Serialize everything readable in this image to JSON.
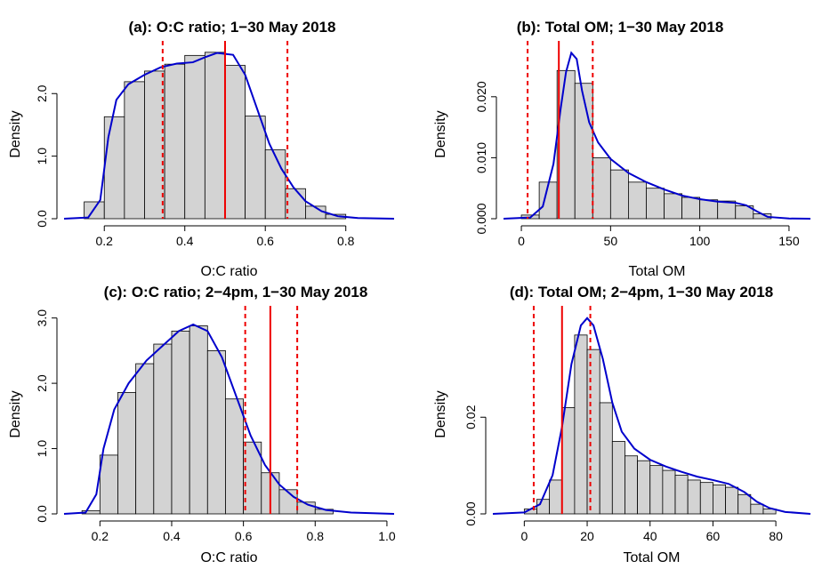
{
  "colors": {
    "bar_fill": "#d3d3d3",
    "density_line": "#0000cc",
    "reference_line": "#ee0000"
  },
  "chart_data": [
    {
      "type": "histogram",
      "title": "(a): O:C ratio; 1−30 May 2018",
      "xlabel": "O:C ratio",
      "ylabel": "Density",
      "xlim": [
        0.1,
        0.92
      ],
      "ylim": [
        0,
        2.7
      ],
      "xticks": [
        "0.2",
        "0.4",
        "0.6",
        "0.8"
      ],
      "xtick_values": [
        0.2,
        0.4,
        0.6,
        0.8
      ],
      "yticks": [
        "0.0",
        "1.0",
        "2.0"
      ],
      "ytick_values": [
        0,
        1.0,
        2.0
      ],
      "bin_width": 0.05,
      "bins": [
        {
          "x0": 0.15,
          "y": 0.27
        },
        {
          "x0": 0.2,
          "y": 1.63
        },
        {
          "x0": 0.25,
          "y": 2.19
        },
        {
          "x0": 0.3,
          "y": 2.36
        },
        {
          "x0": 0.35,
          "y": 2.47
        },
        {
          "x0": 0.4,
          "y": 2.61
        },
        {
          "x0": 0.45,
          "y": 2.66
        },
        {
          "x0": 0.5,
          "y": 2.45
        },
        {
          "x0": 0.55,
          "y": 1.64
        },
        {
          "x0": 0.6,
          "y": 1.1
        },
        {
          "x0": 0.65,
          "y": 0.48
        },
        {
          "x0": 0.7,
          "y": 0.2
        },
        {
          "x0": 0.75,
          "y": 0.07
        }
      ],
      "density_curve": [
        [
          0.1,
          0
        ],
        [
          0.16,
          0.02
        ],
        [
          0.19,
          0.3
        ],
        [
          0.21,
          1.3
        ],
        [
          0.23,
          1.9
        ],
        [
          0.26,
          2.15
        ],
        [
          0.3,
          2.3
        ],
        [
          0.34,
          2.42
        ],
        [
          0.38,
          2.48
        ],
        [
          0.42,
          2.5
        ],
        [
          0.45,
          2.58
        ],
        [
          0.48,
          2.65
        ],
        [
          0.52,
          2.62
        ],
        [
          0.55,
          2.3
        ],
        [
          0.58,
          1.75
        ],
        [
          0.61,
          1.2
        ],
        [
          0.64,
          0.8
        ],
        [
          0.67,
          0.5
        ],
        [
          0.7,
          0.28
        ],
        [
          0.74,
          0.12
        ],
        [
          0.78,
          0.04
        ],
        [
          0.83,
          0.01
        ],
        [
          0.92,
          0
        ]
      ],
      "solid_line": 0.5,
      "dashed_lines": [
        0.345,
        0.655
      ]
    },
    {
      "type": "histogram",
      "title": "(b): Total OM; 1−30 May 2018",
      "xlabel": "Total OM",
      "ylabel": "Density",
      "xlim": [
        -10,
        162
      ],
      "ylim": [
        0,
        0.0277
      ],
      "xticks": [
        "0",
        "50",
        "100",
        "150"
      ],
      "xtick_values": [
        0,
        50,
        100,
        150
      ],
      "yticks": [
        "0.000",
        "0.010",
        "0.020"
      ],
      "ytick_values": [
        0,
        0.01,
        0.02
      ],
      "bin_width": 10,
      "bins": [
        {
          "x0": 0,
          "y": 0.0006
        },
        {
          "x0": 10,
          "y": 0.006
        },
        {
          "x0": 20,
          "y": 0.0243
        },
        {
          "x0": 30,
          "y": 0.0222
        },
        {
          "x0": 40,
          "y": 0.01
        },
        {
          "x0": 50,
          "y": 0.008
        },
        {
          "x0": 60,
          "y": 0.006
        },
        {
          "x0": 70,
          "y": 0.005
        },
        {
          "x0": 80,
          "y": 0.0041
        },
        {
          "x0": 90,
          "y": 0.0035
        },
        {
          "x0": 100,
          "y": 0.0031
        },
        {
          "x0": 110,
          "y": 0.0029
        },
        {
          "x0": 120,
          "y": 0.0021
        },
        {
          "x0": 130,
          "y": 0.0008
        }
      ],
      "density_curve": [
        [
          -10,
          0
        ],
        [
          5,
          0.0002
        ],
        [
          12,
          0.002
        ],
        [
          18,
          0.009
        ],
        [
          22,
          0.018
        ],
        [
          25,
          0.024
        ],
        [
          28,
          0.0272
        ],
        [
          31,
          0.0262
        ],
        [
          34,
          0.021
        ],
        [
          38,
          0.0158
        ],
        [
          43,
          0.0125
        ],
        [
          50,
          0.0098
        ],
        [
          60,
          0.0075
        ],
        [
          70,
          0.006
        ],
        [
          80,
          0.0048
        ],
        [
          90,
          0.0038
        ],
        [
          100,
          0.0032
        ],
        [
          110,
          0.0028
        ],
        [
          120,
          0.0026
        ],
        [
          126,
          0.0022
        ],
        [
          132,
          0.0012
        ],
        [
          138,
          0.0003
        ],
        [
          150,
          3e-05
        ],
        [
          162,
          0
        ]
      ],
      "solid_line": 21,
      "dashed_lines": [
        3.5,
        40
      ]
    },
    {
      "type": "histogram",
      "title": "(c): O:C ratio; 2−4pm, 1−30 May 2018",
      "xlabel": "O:C ratio",
      "ylabel": "Density",
      "xlim": [
        0.1,
        1.02
      ],
      "ylim": [
        0,
        3.05
      ],
      "xticks": [
        "0.2",
        "0.4",
        "0.6",
        "0.8",
        "1.0"
      ],
      "xtick_values": [
        0.2,
        0.4,
        0.6,
        0.8,
        1.0
      ],
      "yticks": [
        "0.0",
        "1.0",
        "2.0",
        "3.0"
      ],
      "ytick_values": [
        0,
        1.0,
        2.0,
        3.0
      ],
      "bin_width": 0.05,
      "bins": [
        {
          "x0": 0.15,
          "y": 0.05
        },
        {
          "x0": 0.2,
          "y": 0.9
        },
        {
          "x0": 0.25,
          "y": 1.86
        },
        {
          "x0": 0.3,
          "y": 2.3
        },
        {
          "x0": 0.35,
          "y": 2.6
        },
        {
          "x0": 0.4,
          "y": 2.8
        },
        {
          "x0": 0.45,
          "y": 2.88
        },
        {
          "x0": 0.5,
          "y": 2.5
        },
        {
          "x0": 0.55,
          "y": 1.76
        },
        {
          "x0": 0.6,
          "y": 1.1
        },
        {
          "x0": 0.65,
          "y": 0.63
        },
        {
          "x0": 0.7,
          "y": 0.37
        },
        {
          "x0": 0.75,
          "y": 0.18
        },
        {
          "x0": 0.8,
          "y": 0.07
        }
      ],
      "density_curve": [
        [
          0.1,
          0
        ],
        [
          0.16,
          0.02
        ],
        [
          0.19,
          0.3
        ],
        [
          0.21,
          1.0
        ],
        [
          0.24,
          1.6
        ],
        [
          0.28,
          2.0
        ],
        [
          0.33,
          2.35
        ],
        [
          0.38,
          2.6
        ],
        [
          0.42,
          2.8
        ],
        [
          0.46,
          2.9
        ],
        [
          0.5,
          2.8
        ],
        [
          0.54,
          2.4
        ],
        [
          0.58,
          1.8
        ],
        [
          0.62,
          1.2
        ],
        [
          0.66,
          0.75
        ],
        [
          0.7,
          0.45
        ],
        [
          0.74,
          0.26
        ],
        [
          0.78,
          0.14
        ],
        [
          0.83,
          0.06
        ],
        [
          0.9,
          0.02
        ],
        [
          1.02,
          0
        ]
      ],
      "solid_line": 0.675,
      "dashed_lines": [
        0.605,
        0.75
      ]
    },
    {
      "type": "histogram",
      "title": "(d): Total OM; 2−4pm, 1−30 May 2018",
      "xlabel": "Total OM",
      "ylabel": "Density",
      "xlim": [
        -10,
        91
      ],
      "ylim": [
        0,
        0.0412
      ],
      "xticks": [
        "0",
        "20",
        "40",
        "60",
        "80"
      ],
      "xtick_values": [
        0,
        20,
        40,
        60,
        80
      ],
      "yticks": [
        "0.00",
        "0.02"
      ],
      "ytick_values": [
        0,
        0.02
      ],
      "bin_width": 4,
      "bins": [
        {
          "x0": 0,
          "y": 0.001
        },
        {
          "x0": 4,
          "y": 0.003
        },
        {
          "x0": 8,
          "y": 0.007
        },
        {
          "x0": 12,
          "y": 0.022
        },
        {
          "x0": 16,
          "y": 0.037
        },
        {
          "x0": 20,
          "y": 0.034
        },
        {
          "x0": 24,
          "y": 0.023
        },
        {
          "x0": 28,
          "y": 0.015
        },
        {
          "x0": 32,
          "y": 0.012
        },
        {
          "x0": 36,
          "y": 0.011
        },
        {
          "x0": 40,
          "y": 0.01
        },
        {
          "x0": 44,
          "y": 0.009
        },
        {
          "x0": 48,
          "y": 0.008
        },
        {
          "x0": 52,
          "y": 0.007
        },
        {
          "x0": 56,
          "y": 0.0065
        },
        {
          "x0": 60,
          "y": 0.006
        },
        {
          "x0": 64,
          "y": 0.0055
        },
        {
          "x0": 68,
          "y": 0.004
        },
        {
          "x0": 72,
          "y": 0.002
        },
        {
          "x0": 76,
          "y": 0.001
        }
      ],
      "density_curve": [
        [
          -10,
          0
        ],
        [
          0,
          0.0003
        ],
        [
          5,
          0.002
        ],
        [
          9,
          0.008
        ],
        [
          12,
          0.018
        ],
        [
          15,
          0.031
        ],
        [
          18,
          0.039
        ],
        [
          20,
          0.0405
        ],
        [
          22,
          0.039
        ],
        [
          25,
          0.032
        ],
        [
          28,
          0.023
        ],
        [
          31,
          0.017
        ],
        [
          35,
          0.0135
        ],
        [
          40,
          0.0112
        ],
        [
          45,
          0.0098
        ],
        [
          50,
          0.0087
        ],
        [
          55,
          0.0077
        ],
        [
          60,
          0.007
        ],
        [
          65,
          0.0062
        ],
        [
          70,
          0.0045
        ],
        [
          74,
          0.0025
        ],
        [
          78,
          0.0012
        ],
        [
          83,
          0.0004
        ],
        [
          91,
          0
        ]
      ],
      "solid_line": 12,
      "dashed_lines": [
        3,
        21
      ]
    }
  ]
}
